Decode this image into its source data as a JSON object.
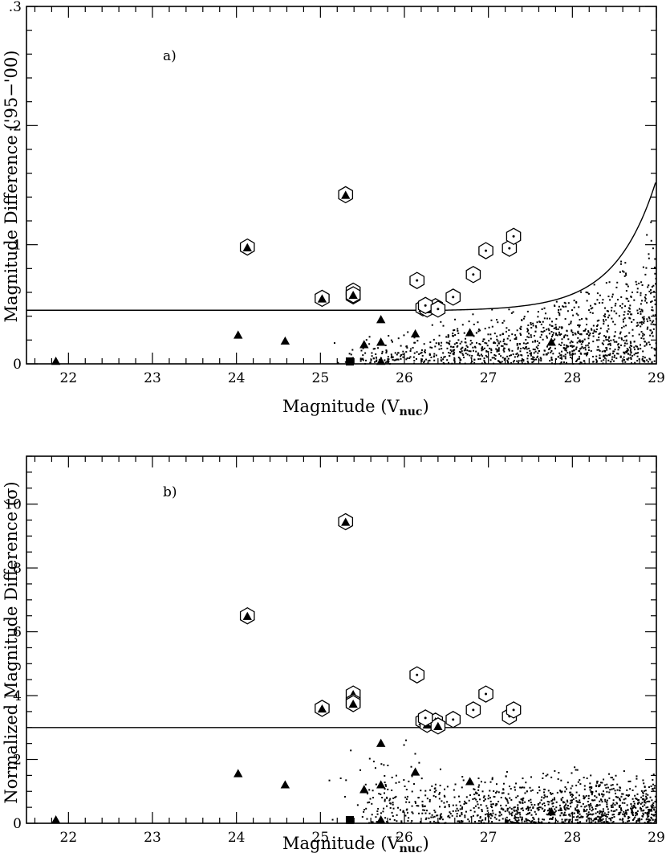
{
  "chart_data": [
    {
      "type": "scatter",
      "panel_label": "a)",
      "xlabel": "Magnitude (V",
      "xlabel_sub": "nuc",
      "xlabel_close": ")",
      "ylabel": "Magnitude Difference ('95−'00)",
      "xlim": [
        21.5,
        29
      ],
      "ylim": [
        0,
        0.3
      ],
      "xticks": [
        22,
        23,
        24,
        25,
        26,
        27,
        28,
        29
      ],
      "xtick_labels": [
        "22",
        "23",
        "24",
        "25",
        "26",
        "27",
        "28",
        "29"
      ],
      "yticks": [
        0,
        0.1,
        0.2,
        0.3
      ],
      "ytick_labels": [
        "0",
        ".1",
        ".2",
        ".3"
      ],
      "threshold_line": {
        "y": 0.045,
        "x_end": 26.45,
        "curve": {
          "a": 0.045,
          "b": 0.00059,
          "k": 2.05,
          "x0": 26.45
        }
      },
      "series": [
        {
          "name": "triangles",
          "marker": "filled-triangle",
          "x": [
            21.85,
            24.02,
            24.58,
            25.52,
            25.72,
            25.72,
            25.72,
            26.13,
            26.78,
            27.75
          ],
          "y": [
            0.002,
            0.024,
            0.019,
            0.016,
            0.037,
            0.018,
            0.002,
            0.025,
            0.026,
            0.018
          ]
        },
        {
          "name": "squares",
          "marker": "filled-square",
          "x": [
            25.35
          ],
          "y": [
            0.002
          ]
        },
        {
          "name": "hexagon_triangle",
          "marker": "hexagon-with-triangle",
          "x": [
            24.13,
            25.02,
            25.3,
            25.39,
            25.39,
            25.39,
            26.22,
            26.27,
            26.37
          ],
          "y": [
            0.098,
            0.055,
            0.142,
            0.061,
            0.057,
            0.058,
            0.047,
            0.046,
            0.048
          ]
        },
        {
          "name": "hexagon_dot",
          "marker": "hexagon-with-dot",
          "x": [
            26.15,
            26.25,
            26.4,
            26.58,
            26.82,
            26.97,
            27.25,
            27.3
          ],
          "y": [
            0.07,
            0.049,
            0.046,
            0.056,
            0.075,
            0.095,
            0.097,
            0.107
          ]
        }
      ],
      "field_points": {
        "marker": "dot",
        "count": 1150,
        "x_range": [
          25.1,
          29
        ],
        "seed": 7
      }
    },
    {
      "type": "scatter",
      "panel_label": "b)",
      "xlabel": "Magnitude (V",
      "xlabel_sub": "nuc",
      "xlabel_close": ")",
      "ylabel": "Normalized Magnitude Difference (σ)",
      "xlim": [
        21.5,
        29
      ],
      "ylim": [
        0,
        11.5
      ],
      "xticks": [
        22,
        23,
        24,
        25,
        26,
        27,
        28,
        29
      ],
      "xtick_labels": [
        "22",
        "23",
        "24",
        "25",
        "26",
        "27",
        "28",
        "29"
      ],
      "yticks": [
        0,
        2,
        4,
        6,
        8,
        10
      ],
      "ytick_labels": [
        "0",
        "2",
        "4",
        "6",
        "8",
        "10"
      ],
      "threshold_line": {
        "y": 3.0
      },
      "series": [
        {
          "name": "triangles",
          "marker": "filled-triangle",
          "x": [
            21.85,
            24.02,
            24.58,
            25.52,
            25.72,
            25.72,
            25.72,
            26.13,
            26.78,
            27.75
          ],
          "y": [
            0.1,
            1.55,
            1.2,
            1.05,
            2.5,
            1.2,
            0.1,
            1.6,
            1.3,
            0.35
          ]
        },
        {
          "name": "squares",
          "marker": "filled-square",
          "x": [
            25.35
          ],
          "y": [
            0.1
          ]
        },
        {
          "name": "hexagon_triangle",
          "marker": "hexagon-with-triangle",
          "x": [
            24.13,
            25.02,
            25.3,
            25.39,
            25.39,
            25.39,
            26.22,
            26.27,
            26.37,
            26.4
          ],
          "y": [
            6.5,
            3.6,
            9.45,
            4.05,
            3.8,
            3.75,
            3.2,
            3.1,
            3.2,
            3.05
          ]
        },
        {
          "name": "hexagon_dot",
          "marker": "hexagon-with-dot",
          "x": [
            26.15,
            26.25,
            26.58,
            26.82,
            26.97,
            27.25,
            27.3
          ],
          "y": [
            4.65,
            3.3,
            3.25,
            3.55,
            4.05,
            3.35,
            3.55
          ]
        }
      ],
      "field_points": {
        "marker": "dot",
        "count": 1150,
        "x_range": [
          25.1,
          29
        ],
        "seed": 11
      }
    }
  ]
}
